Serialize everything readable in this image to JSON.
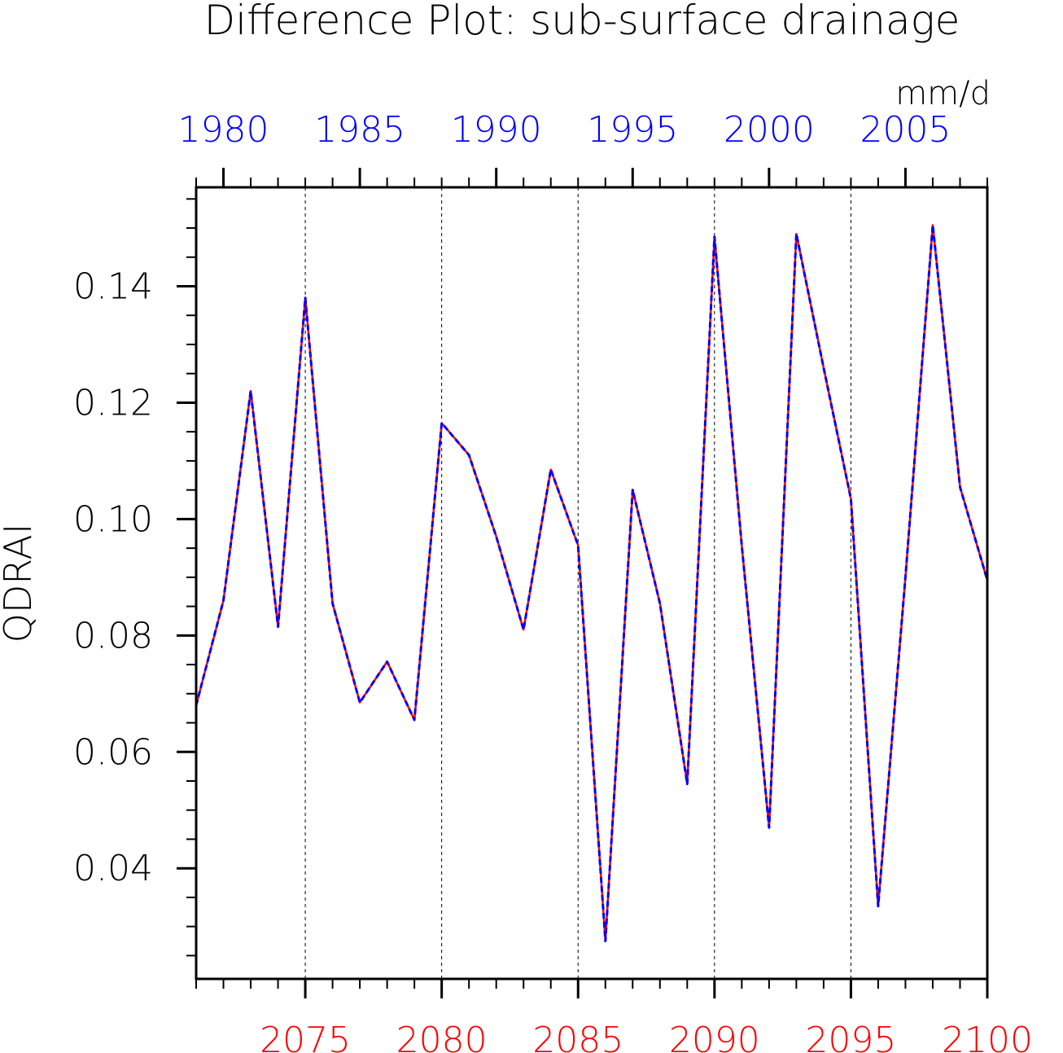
{
  "chart_data": {
    "type": "line",
    "title": "Difference Plot: sub-surface drainage",
    "units": "mm/d",
    "ylabel": "QDRAI",
    "ylim": [
      0.021,
      0.157
    ],
    "yticks": [
      {
        "value": 0.04,
        "label": "0.04"
      },
      {
        "value": 0.06,
        "label": "0.06"
      },
      {
        "value": 0.08,
        "label": "0.08"
      },
      {
        "value": 0.1,
        "label": "0.10"
      },
      {
        "value": 0.12,
        "label": "0.12"
      },
      {
        "value": 0.14,
        "label": "0.14"
      }
    ],
    "y_minor_step": 0.005,
    "xlim_bottom": [
      2071,
      2100
    ],
    "xlim_top": [
      1979,
      2008
    ],
    "bottom_ticks": [
      {
        "value": 2075,
        "label": "2075"
      },
      {
        "value": 2080,
        "label": "2080"
      },
      {
        "value": 2085,
        "label": "2085"
      },
      {
        "value": 2090,
        "label": "2090"
      },
      {
        "value": 2095,
        "label": "2095"
      },
      {
        "value": 2100,
        "label": "2100"
      }
    ],
    "top_ticks": [
      {
        "value": 1980,
        "label": "1980"
      },
      {
        "value": 1985,
        "label": "1985"
      },
      {
        "value": 1990,
        "label": "1990"
      },
      {
        "value": 1995,
        "label": "1995"
      },
      {
        "value": 2000,
        "label": "2000"
      },
      {
        "value": 2005,
        "label": "2005"
      }
    ],
    "grid": "vertical dashed at major ticks",
    "colors": {
      "bottom_axis": "#ff0000",
      "top_axis": "#0000ff",
      "series_solid": "#ff0000",
      "series_dashed": "#0000ff"
    },
    "x": [
      2071,
      2072,
      2073,
      2074,
      2075,
      2076,
      2077,
      2078,
      2079,
      2080,
      2081,
      2082,
      2083,
      2084,
      2085,
      2086,
      2087,
      2088,
      2089,
      2090,
      2091,
      2092,
      2093,
      2094,
      2095,
      2096,
      2097,
      2098,
      2099,
      2100
    ],
    "series": [
      {
        "color": "#ff0000",
        "style": "solid",
        "values": [
          0.068,
          0.086,
          0.122,
          0.0815,
          0.138,
          0.0855,
          0.0685,
          0.0755,
          0.0655,
          0.1165,
          0.111,
          0.097,
          0.081,
          0.1085,
          0.0955,
          0.0275,
          0.105,
          0.0855,
          0.0545,
          0.1485,
          0.0955,
          0.047,
          0.149,
          0.126,
          0.1035,
          0.0335,
          0.09,
          0.1505,
          0.1055,
          0.0895
        ]
      },
      {
        "color": "#0000ff",
        "style": "dashed",
        "values": [
          0.068,
          0.086,
          0.122,
          0.0815,
          0.138,
          0.0855,
          0.0685,
          0.0755,
          0.0655,
          0.1165,
          0.111,
          0.097,
          0.081,
          0.1085,
          0.0955,
          0.0275,
          0.105,
          0.0855,
          0.0545,
          0.1485,
          0.0955,
          0.047,
          0.149,
          0.126,
          0.1035,
          0.0335,
          0.09,
          0.1505,
          0.1055,
          0.0895
        ]
      }
    ]
  }
}
